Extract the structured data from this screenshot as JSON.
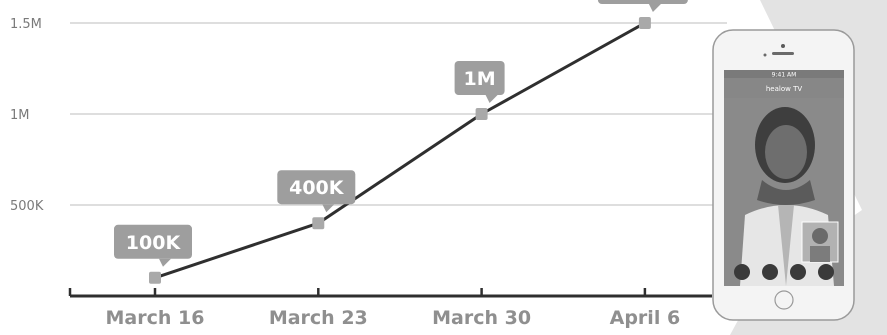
{
  "chart_data": {
    "type": "line",
    "categories": [
      "March 16",
      "March 23",
      "March 30",
      "April 6"
    ],
    "values": [
      100000,
      400000,
      1000000,
      1500000
    ],
    "data_labels": [
      "100K",
      "400K",
      "1M",
      ""
    ],
    "y_ticks": [
      {
        "value": 500000,
        "label": "500K"
      },
      {
        "value": 1000000,
        "label": "1M"
      },
      {
        "value": 1500000,
        "label": "1.5M"
      }
    ],
    "ylim": [
      0,
      1700000
    ],
    "title": "",
    "xlabel": "",
    "ylabel": "",
    "grid": true,
    "colors": {
      "line": "#2f2f2f",
      "marker": "#a9a9a9",
      "label_bg": "#9e9e9e",
      "gridline": "#c9c9c9",
      "axis": "#2f2f2f"
    }
  },
  "phone": {
    "app_title": "healow TV",
    "status_time": "9:41 AM"
  }
}
